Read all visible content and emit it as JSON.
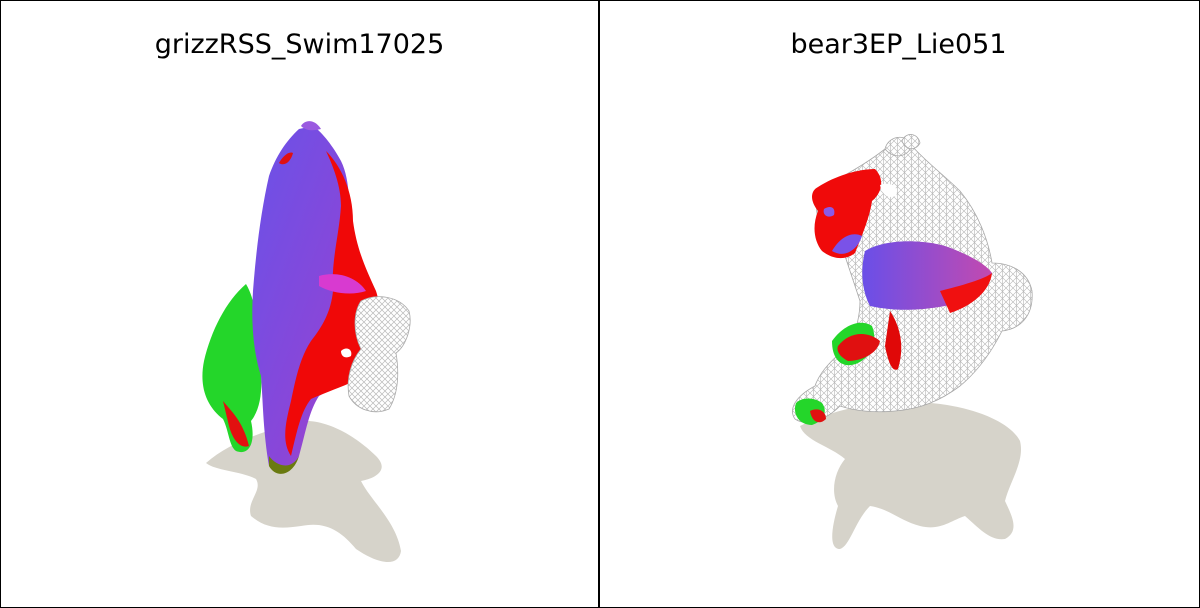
{
  "panels": [
    {
      "title": "grizzRSS_Swim17025"
    },
    {
      "title": "bear3EP_Lie051"
    }
  ],
  "colors": {
    "background": "#ffffff",
    "shadow": "#d6d3ca",
    "mesh_purple": "#7a4fe8",
    "mesh_red": "#ff0000",
    "mesh_green": "#22d822",
    "wireframe": "#bcbcbc"
  }
}
